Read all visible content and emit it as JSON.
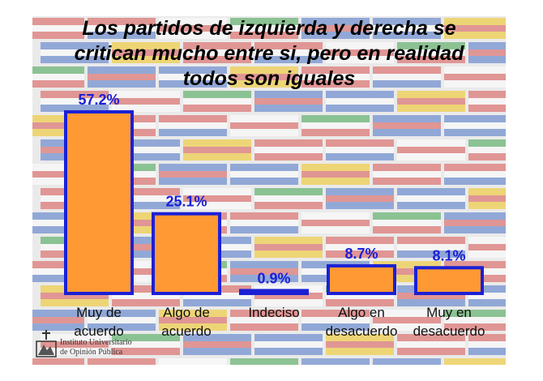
{
  "title_lines": [
    "Los partidos de izquierda y derecha se",
    "critican mucho entre si, pero en realidad",
    "todos son iguales"
  ],
  "colors": {
    "bar_fill": "#ff9933",
    "bar_stroke": "#1b20d6",
    "label_color": "#1b20d6",
    "category_color": "#111111",
    "background_collage": "#eaeaea"
  },
  "chart_data": {
    "type": "bar",
    "title": "Los partidos de izquierda y derecha se critican mucho entre si, pero en realidad todos son iguales",
    "categories": [
      [
        "Muy de",
        "acuerdo"
      ],
      [
        "Algo de",
        "acuerdo"
      ],
      [
        "Indeciso"
      ],
      [
        "Algo en",
        "desacuerdo"
      ],
      [
        "Muy en",
        "desacuerdo"
      ]
    ],
    "values": [
      57.2,
      25.1,
      0.9,
      8.7,
      8.1
    ],
    "value_labels": [
      "57.2%",
      "25.1%",
      "0.9%",
      "8.7%",
      "8.1%"
    ],
    "xlabel": "",
    "ylabel": "",
    "ylim": [
      0,
      60
    ],
    "grid": false,
    "legend": "none"
  },
  "footer": {
    "line1": "Instituto Universitario",
    "line2": "de Opinión Pública"
  }
}
